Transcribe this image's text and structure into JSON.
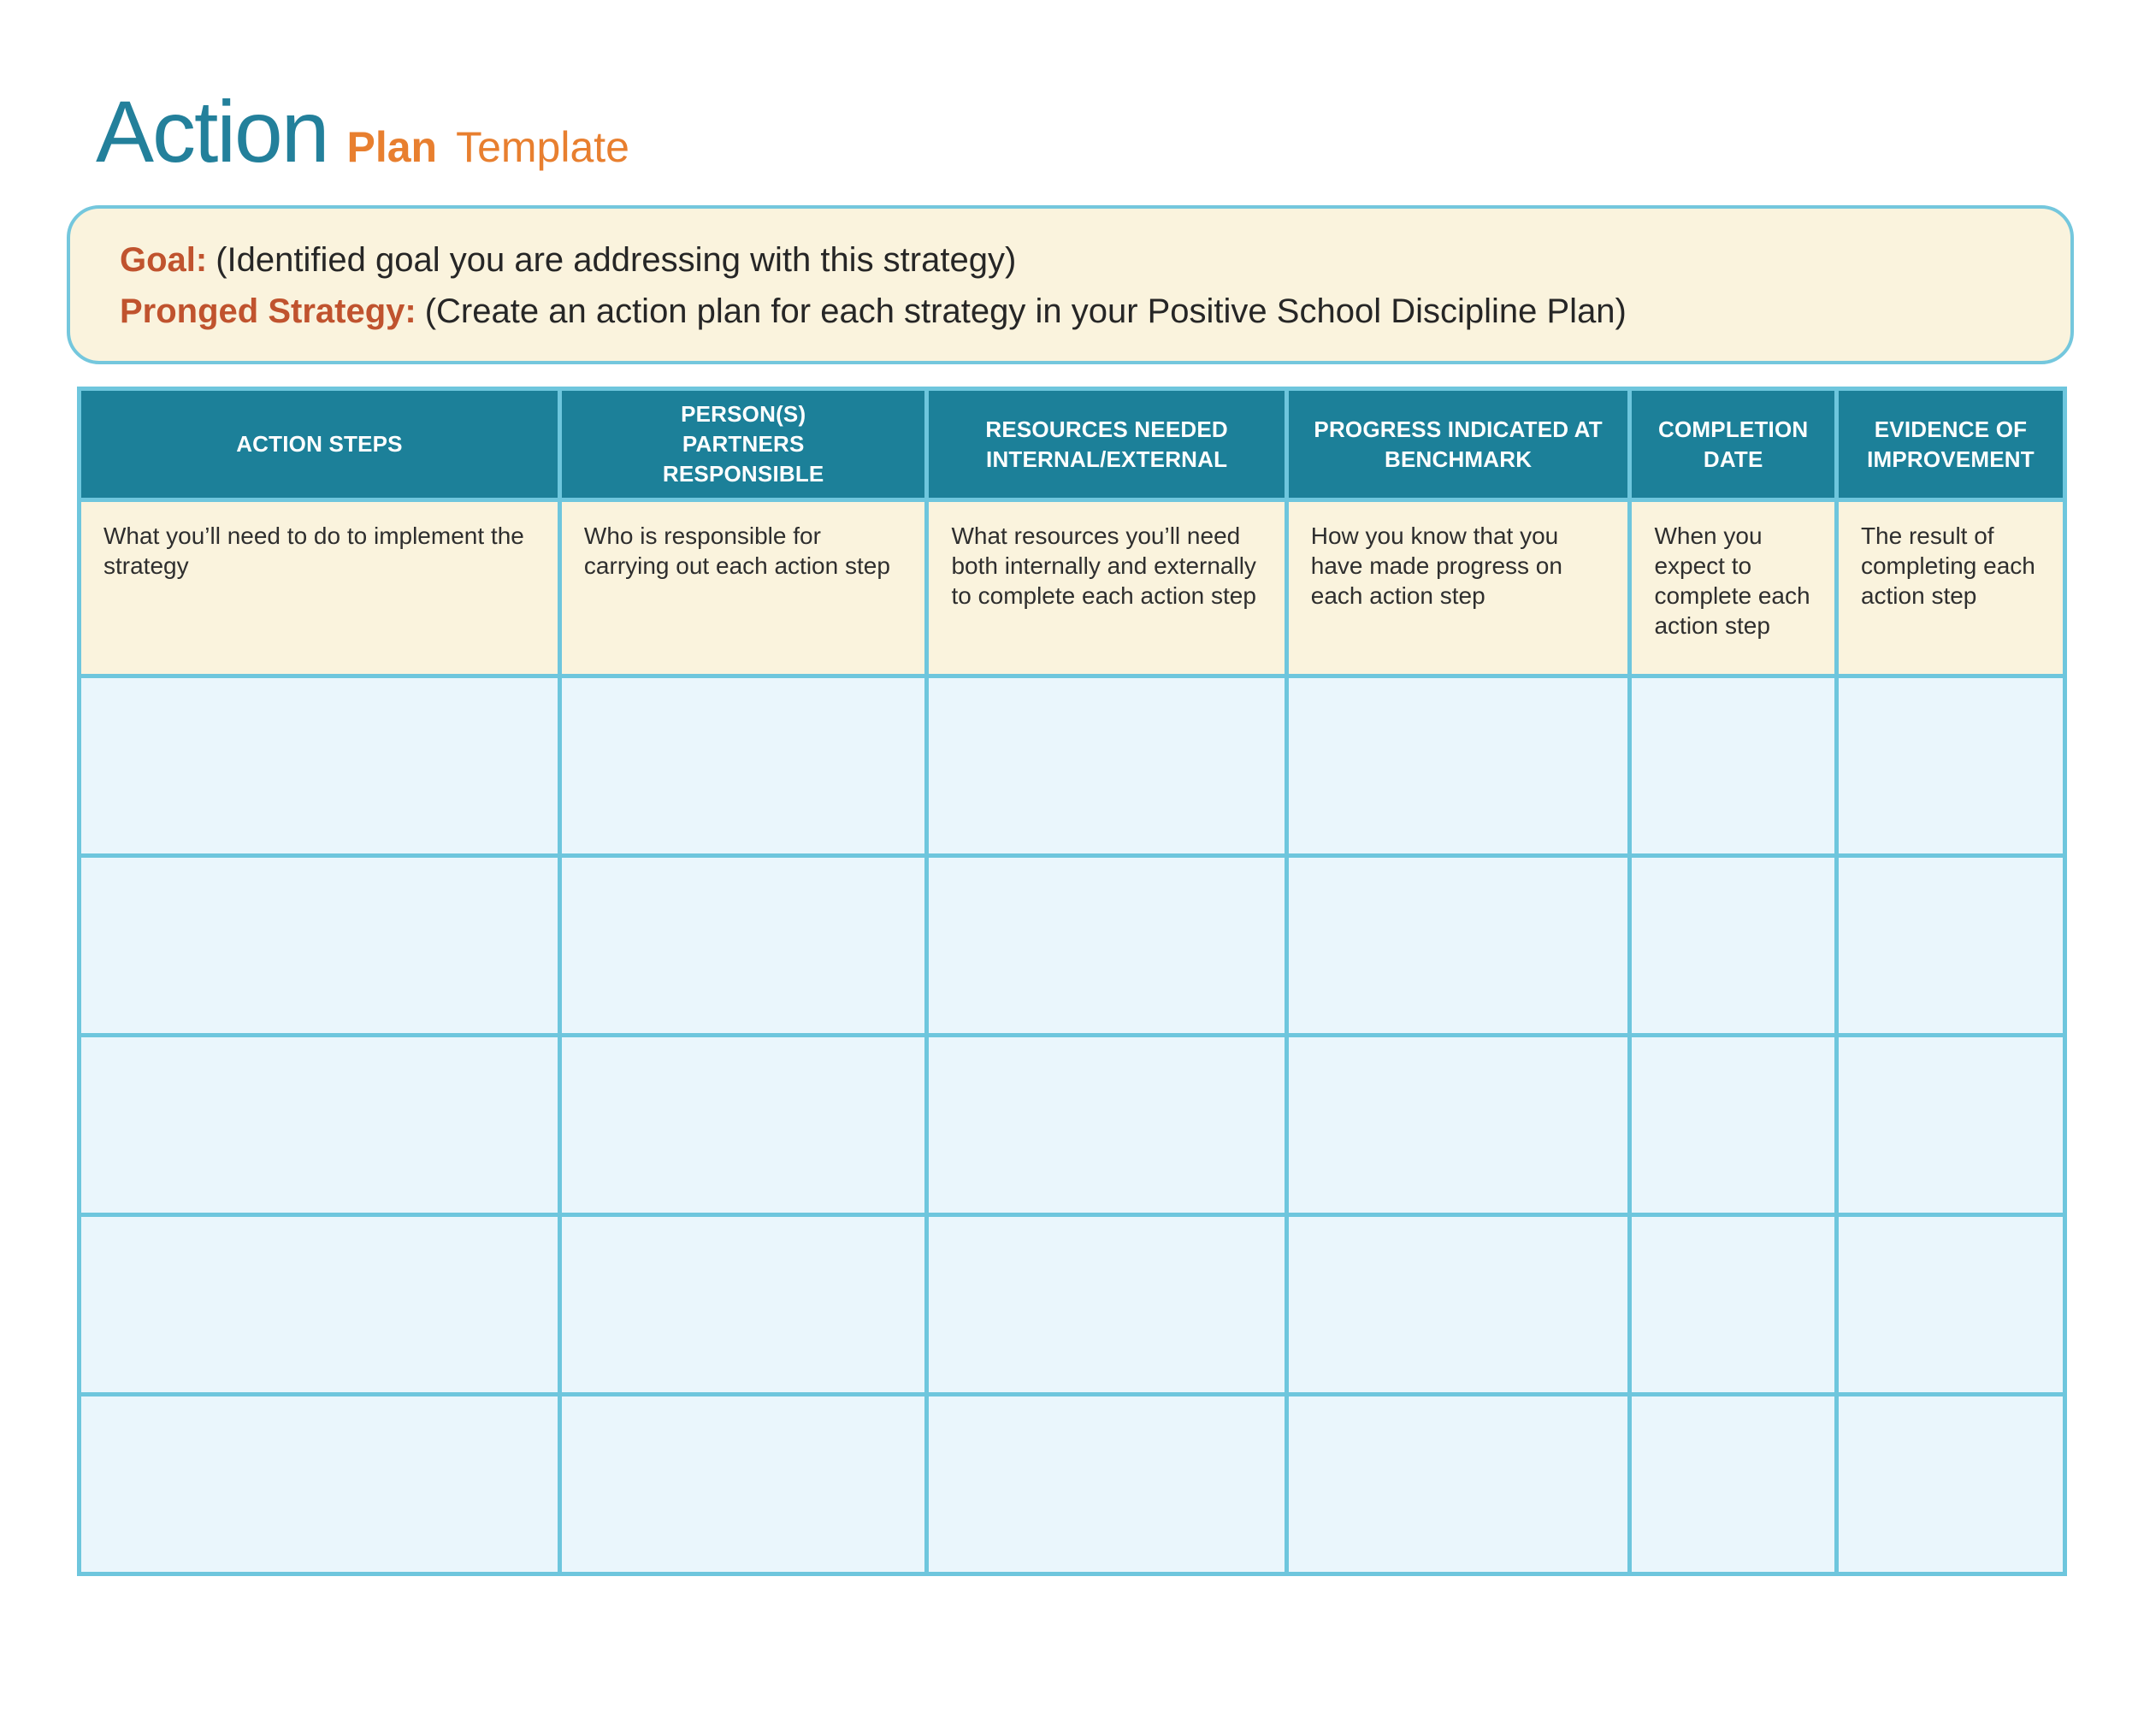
{
  "page_title": {
    "primary": "Action",
    "secondary_bold": "Plan",
    "secondary_regular": "Template"
  },
  "info_box": {
    "rows": [
      {
        "label": "Goal:",
        "text": "(Identified goal you are addressing with this strategy)"
      },
      {
        "label": "Pronged Strategy:",
        "text": "(Create an action plan for each strategy in your Positive School Discipline Plan)"
      }
    ]
  },
  "table": {
    "columns": [
      {
        "header": "ACTION STEPS",
        "description": "What you’ll need to do to implement the strategy"
      },
      {
        "header": "PERSON(S)\nPARTNERS\nRESPONSIBLE",
        "description": "Who is responsible for carrying out each action step"
      },
      {
        "header": "RESOURCES NEEDED\nINTERNAL/EXTERNAL",
        "description": "What resources you’ll need both internally and externally to complete each action step"
      },
      {
        "header": "PROGRESS INDICATED AT\nBENCHMARK",
        "description": "How you know that you have made progress on each action step"
      },
      {
        "header": "COMPLETION\nDATE",
        "description": "When you expect to complete each action step"
      },
      {
        "header": "EVIDENCE OF\nIMPROVEMENT",
        "description": "The result of completing each action step"
      }
    ],
    "empty_row_count": 5
  },
  "colors": {
    "title_teal": "#23809b",
    "title_orange": "#e87f2f",
    "label_rust": "#c0532e",
    "table_header_bg": "#1c8099",
    "cream_bg": "#faf3dd",
    "empty_cell_bg": "#eaf6fc",
    "border_blue": "#6ec6dd",
    "text_dark": "#2b2b2b"
  }
}
